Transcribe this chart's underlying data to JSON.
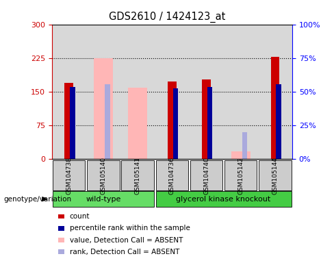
{
  "title": "GDS2610 / 1424123_at",
  "samples": [
    "GSM104738",
    "GSM105140",
    "GSM105141",
    "GSM104736",
    "GSM104740",
    "GSM105142",
    "GSM105144"
  ],
  "red_values": [
    170,
    0,
    0,
    173,
    178,
    0,
    228
  ],
  "blue_pct": [
    54,
    0,
    0,
    53,
    54,
    0,
    56
  ],
  "pink_value_bars": [
    0,
    226,
    160,
    0,
    0,
    18,
    0
  ],
  "pink_rank_pct": [
    0,
    56,
    0,
    0,
    0,
    20,
    0
  ],
  "ylim_left": [
    0,
    300
  ],
  "ylim_right": [
    0,
    100
  ],
  "yticks_left": [
    0,
    75,
    150,
    225,
    300
  ],
  "yticks_right": [
    0,
    25,
    50,
    75,
    100
  ],
  "ytick_labels_left": [
    "0",
    "75",
    "150",
    "225",
    "300"
  ],
  "ytick_labels_right": [
    "0%",
    "25%",
    "50%",
    "75%",
    "100%"
  ],
  "bg_color": "#D8D8D8",
  "red_color": "#CC0000",
  "blue_color": "#000099",
  "pink_value_color": "#FFB6B6",
  "pink_rank_color": "#AAAADD",
  "legend_labels": [
    "count",
    "percentile rank within the sample",
    "value, Detection Call = ABSENT",
    "rank, Detection Call = ABSENT"
  ],
  "legend_colors": [
    "#CC0000",
    "#000099",
    "#FFB6B6",
    "#AAAADD"
  ],
  "wt_color": "#66DD66",
  "gk_color": "#44CC44"
}
